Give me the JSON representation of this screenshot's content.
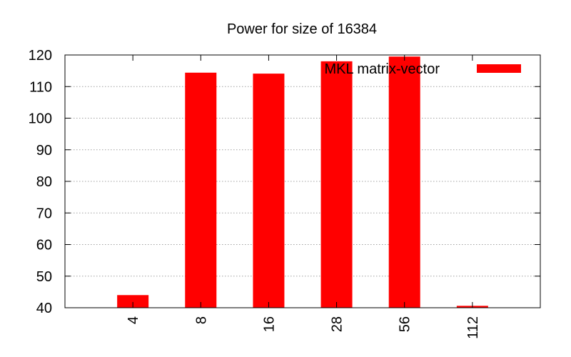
{
  "chart_data": {
    "type": "bar",
    "title": "Power for size of 16384",
    "xlabel": "",
    "ylabel": "",
    "categories": [
      "4",
      "8",
      "16",
      "28",
      "56",
      "112"
    ],
    "series": [
      {
        "name": "MKL matrix-vector",
        "color": "#ff0000",
        "values": [
          44,
          114.4,
          114.1,
          118,
          119.5,
          40.6
        ]
      }
    ],
    "ylim": [
      40,
      120
    ],
    "yticks": [
      "40",
      "50",
      "60",
      "70",
      "80",
      "90",
      "100",
      "110",
      "120"
    ],
    "grid": true,
    "legend_position": "top-right"
  }
}
